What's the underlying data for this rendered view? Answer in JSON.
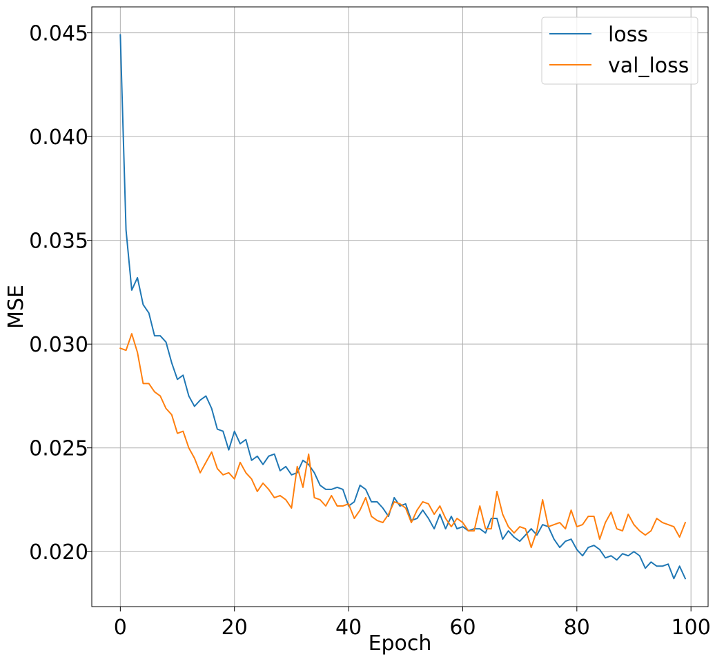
{
  "chart_data": {
    "type": "line",
    "title": "",
    "xlabel": "Epoch",
    "ylabel": "MSE",
    "xlim": [
      -5,
      103
    ],
    "ylim": [
      0.01735,
      0.04625
    ],
    "xticks": [
      0,
      20,
      40,
      60,
      80,
      100
    ],
    "xtick_labels": [
      "0",
      "20",
      "40",
      "60",
      "80",
      "100"
    ],
    "yticks": [
      0.02,
      0.025,
      0.03,
      0.035,
      0.04,
      0.045
    ],
    "ytick_labels": [
      "0.020",
      "0.025",
      "0.030",
      "0.035",
      "0.040",
      "0.045"
    ],
    "grid": true,
    "legend_position": "top-right",
    "x": [
      0,
      1,
      2,
      3,
      4,
      5,
      6,
      7,
      8,
      9,
      10,
      11,
      12,
      13,
      14,
      15,
      16,
      17,
      18,
      19,
      20,
      21,
      22,
      23,
      24,
      25,
      26,
      27,
      28,
      29,
      30,
      31,
      32,
      33,
      34,
      35,
      36,
      37,
      38,
      39,
      40,
      41,
      42,
      43,
      44,
      45,
      46,
      47,
      48,
      49,
      50,
      51,
      52,
      53,
      54,
      55,
      56,
      57,
      58,
      59,
      60,
      61,
      62,
      63,
      64,
      65,
      66,
      67,
      68,
      69,
      70,
      71,
      72,
      73,
      74,
      75,
      76,
      77,
      78,
      79,
      80,
      81,
      82,
      83,
      84,
      85,
      86,
      87,
      88,
      89,
      90,
      91,
      92,
      93,
      94,
      95,
      96,
      97,
      98,
      99
    ],
    "series": [
      {
        "name": "loss",
        "color": "#1f77b4",
        "values": [
          0.0449,
          0.0355,
          0.0326,
          0.0332,
          0.0319,
          0.0315,
          0.0304,
          0.0304,
          0.0301,
          0.0291,
          0.0283,
          0.0285,
          0.0275,
          0.027,
          0.0273,
          0.0275,
          0.0269,
          0.0259,
          0.0258,
          0.0249,
          0.0258,
          0.0252,
          0.0254,
          0.0244,
          0.0246,
          0.0242,
          0.0246,
          0.0247,
          0.0239,
          0.0241,
          0.0237,
          0.0238,
          0.0244,
          0.0242,
          0.0238,
          0.0232,
          0.023,
          0.023,
          0.0231,
          0.023,
          0.0222,
          0.0224,
          0.0232,
          0.023,
          0.0224,
          0.0224,
          0.0221,
          0.0217,
          0.0226,
          0.0222,
          0.0223,
          0.0215,
          0.0216,
          0.022,
          0.0216,
          0.0211,
          0.0218,
          0.0211,
          0.0217,
          0.0211,
          0.0212,
          0.021,
          0.0211,
          0.0211,
          0.0209,
          0.0216,
          0.0216,
          0.0206,
          0.021,
          0.0207,
          0.0205,
          0.0208,
          0.0211,
          0.0208,
          0.0213,
          0.0212,
          0.0206,
          0.0202,
          0.0205,
          0.0206,
          0.0201,
          0.0198,
          0.0202,
          0.0203,
          0.0201,
          0.0197,
          0.0198,
          0.0196,
          0.0199,
          0.0198,
          0.02,
          0.0198,
          0.0192,
          0.0195,
          0.0193,
          0.0193,
          0.0194,
          0.0187,
          0.0193,
          0.0187
        ]
      },
      {
        "name": "val_loss",
        "color": "#ff7f0e",
        "values": [
          0.0298,
          0.0297,
          0.0305,
          0.0296,
          0.0281,
          0.0281,
          0.0277,
          0.0275,
          0.0269,
          0.0266,
          0.0257,
          0.0258,
          0.025,
          0.0245,
          0.0238,
          0.0243,
          0.0248,
          0.024,
          0.0237,
          0.0238,
          0.0235,
          0.0243,
          0.0238,
          0.0235,
          0.0229,
          0.0233,
          0.023,
          0.0226,
          0.0227,
          0.0225,
          0.0221,
          0.0241,
          0.0231,
          0.0247,
          0.0226,
          0.0225,
          0.0222,
          0.0227,
          0.0222,
          0.0222,
          0.0223,
          0.0216,
          0.022,
          0.0226,
          0.0217,
          0.0215,
          0.0214,
          0.0218,
          0.0224,
          0.0223,
          0.0221,
          0.0214,
          0.022,
          0.0224,
          0.0223,
          0.0218,
          0.0222,
          0.0216,
          0.0212,
          0.0216,
          0.0214,
          0.021,
          0.021,
          0.0222,
          0.0211,
          0.0211,
          0.0229,
          0.0218,
          0.0212,
          0.0209,
          0.0212,
          0.0211,
          0.0202,
          0.021,
          0.0225,
          0.0212,
          0.0213,
          0.0214,
          0.0211,
          0.022,
          0.0212,
          0.0213,
          0.0217,
          0.0217,
          0.0206,
          0.0214,
          0.0219,
          0.0211,
          0.021,
          0.0218,
          0.0213,
          0.021,
          0.0208,
          0.021,
          0.0216,
          0.0214,
          0.0213,
          0.0212,
          0.0207,
          0.0214
        ]
      }
    ]
  }
}
